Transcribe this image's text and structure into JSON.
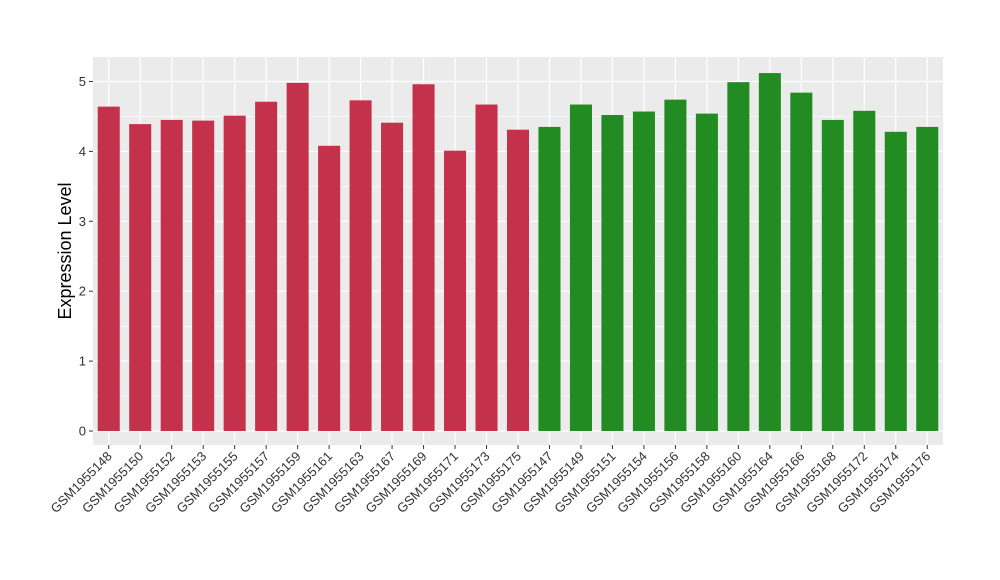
{
  "chart_data": {
    "type": "bar",
    "ylabel": "Expression Level",
    "ylim": [
      -0.2,
      5.35
    ],
    "yticks": [
      0,
      1,
      2,
      3,
      4,
      5
    ],
    "grid": true,
    "categories": [
      "GSM1955148",
      "GSM1955150",
      "GSM1955152",
      "GSM1955153",
      "GSM1955155",
      "GSM1955157",
      "GSM1955159",
      "GSM1955161",
      "GSM1955163",
      "GSM1955167",
      "GSM1955169",
      "GSM1955171",
      "GSM1955173",
      "GSM1955175",
      "GSM1955147",
      "GSM1955149",
      "GSM1955151",
      "GSM1955154",
      "GSM1955156",
      "GSM1955158",
      "GSM1955160",
      "GSM1955164",
      "GSM1955166",
      "GSM1955168",
      "GSM1955172",
      "GSM1955174",
      "GSM1955176"
    ],
    "values": [
      4.64,
      4.39,
      4.45,
      4.44,
      4.51,
      4.71,
      4.98,
      4.08,
      4.73,
      4.41,
      4.96,
      4.01,
      4.67,
      4.31,
      4.35,
      4.67,
      4.52,
      4.57,
      4.74,
      4.54,
      4.99,
      5.12,
      4.84,
      4.45,
      4.58,
      4.28,
      4.35
    ],
    "bar_colors": [
      "#c4314b",
      "#c4314b",
      "#c4314b",
      "#c4314b",
      "#c4314b",
      "#c4314b",
      "#c4314b",
      "#c4314b",
      "#c4314b",
      "#c4314b",
      "#c4314b",
      "#c4314b",
      "#c4314b",
      "#c4314b",
      "#228b22",
      "#228b22",
      "#228b22",
      "#228b22",
      "#228b22",
      "#228b22",
      "#228b22",
      "#228b22",
      "#228b22",
      "#228b22",
      "#228b22",
      "#228b22",
      "#228b22"
    ],
    "panel_background": "#ebebeb",
    "grid_color": "#ffffff"
  }
}
